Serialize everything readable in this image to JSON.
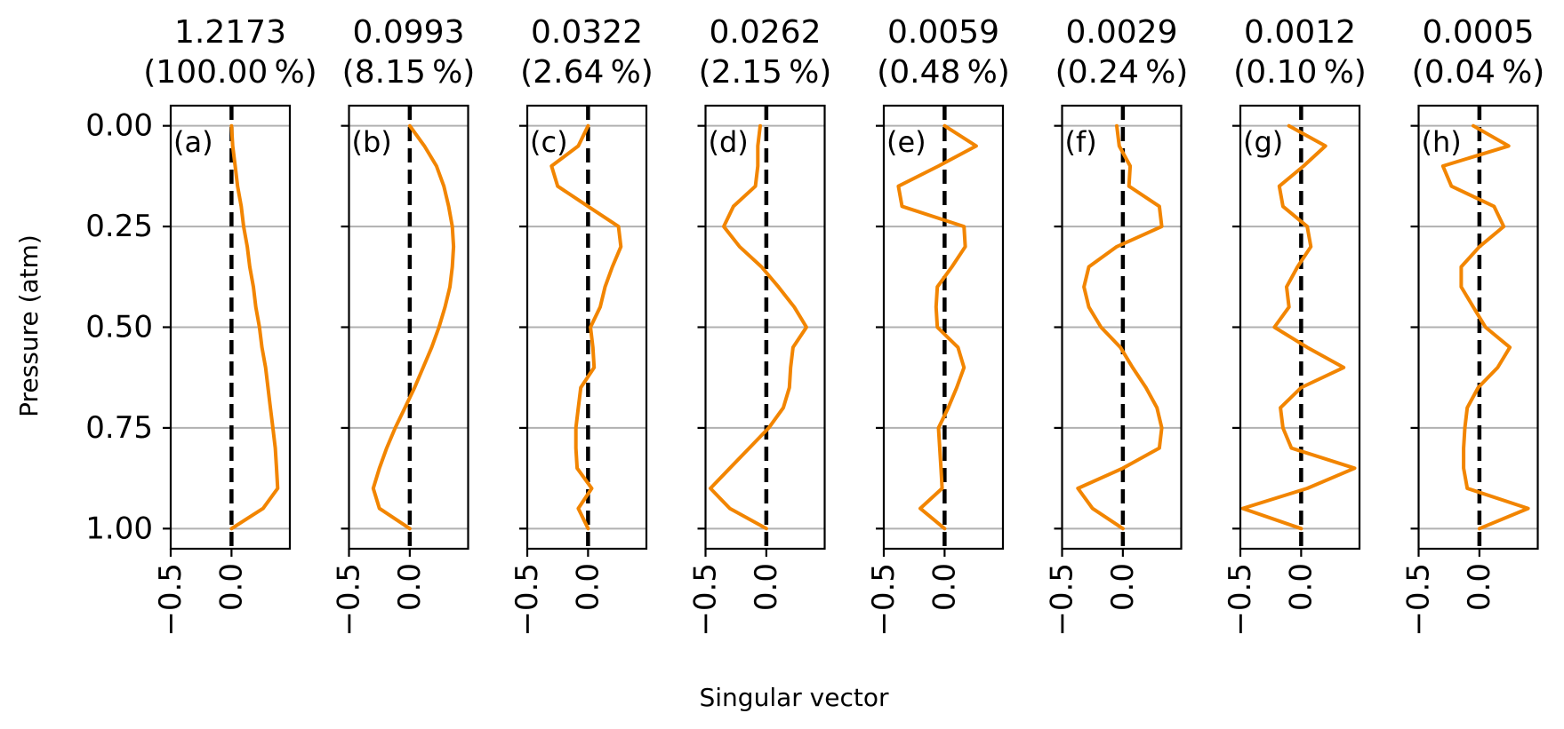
{
  "chart_data": {
    "type": "line",
    "ylabel": "Pressure (atm)",
    "xlabel": "Singular vector",
    "y_ticks": [
      "0.00",
      "0.25",
      "0.50",
      "0.75",
      "1.00"
    ],
    "y_tick_values": [
      0.0,
      0.25,
      0.5,
      0.75,
      1.0
    ],
    "ylim": [
      1.05,
      -0.05
    ],
    "x_ticks": [
      "−0.5",
      "0.0"
    ],
    "x_tick_values": [
      -0.5,
      0.0
    ],
    "xlim": [
      -0.5,
      0.48
    ],
    "grid": "horizontal",
    "line_color": "#f28500",
    "reference_line": {
      "x": 0.0,
      "style": "dashed",
      "color": "#000000"
    },
    "y": [
      0.0,
      0.05,
      0.1,
      0.15,
      0.2,
      0.25,
      0.3,
      0.35,
      0.4,
      0.45,
      0.5,
      0.55,
      0.6,
      0.65,
      0.7,
      0.75,
      0.8,
      0.85,
      0.9,
      0.95,
      1.0
    ],
    "panels": [
      {
        "label": "(a)",
        "value": "1.2173",
        "percent": "(100.00 %)",
        "x": [
          0.0,
          0.01,
          0.03,
          0.05,
          0.08,
          0.1,
          0.13,
          0.15,
          0.18,
          0.2,
          0.23,
          0.25,
          0.28,
          0.3,
          0.32,
          0.34,
          0.36,
          0.37,
          0.38,
          0.26,
          0.0
        ]
      },
      {
        "label": "(b)",
        "value": "0.0993",
        "percent": "(8.15 %)",
        "x": [
          0.0,
          0.12,
          0.22,
          0.28,
          0.32,
          0.35,
          0.36,
          0.35,
          0.33,
          0.29,
          0.24,
          0.18,
          0.11,
          0.04,
          -0.04,
          -0.12,
          -0.19,
          -0.25,
          -0.3,
          -0.25,
          0.0
        ]
      },
      {
        "label": "(c)",
        "value": "0.0322",
        "percent": "(2.64 %)",
        "x": [
          0.0,
          -0.08,
          -0.3,
          -0.25,
          0.0,
          0.25,
          0.27,
          0.2,
          0.14,
          0.1,
          0.02,
          0.04,
          0.05,
          -0.06,
          -0.08,
          -0.1,
          -0.1,
          -0.09,
          0.03,
          -0.08,
          0.0
        ]
      },
      {
        "label": "(d)",
        "value": "0.0262",
        "percent": "(2.15 %)",
        "x": [
          -0.05,
          -0.07,
          -0.07,
          -0.09,
          -0.27,
          -0.35,
          -0.22,
          -0.04,
          0.1,
          0.23,
          0.33,
          0.22,
          0.2,
          0.19,
          0.14,
          0.02,
          -0.14,
          -0.3,
          -0.46,
          -0.3,
          0.0
        ]
      },
      {
        "label": "(e)",
        "value": "0.0059",
        "percent": "(0.48 %)",
        "x": [
          0.0,
          0.26,
          -0.05,
          -0.38,
          -0.35,
          0.16,
          0.17,
          0.06,
          -0.06,
          -0.07,
          -0.06,
          0.11,
          0.16,
          0.1,
          0.03,
          -0.05,
          -0.04,
          -0.03,
          -0.02,
          -0.2,
          0.0
        ]
      },
      {
        "label": "(f)",
        "value": "0.0029",
        "percent": "(0.24 %)",
        "x": [
          -0.05,
          -0.03,
          0.06,
          0.05,
          0.3,
          0.32,
          -0.05,
          -0.28,
          -0.32,
          -0.28,
          -0.18,
          -0.02,
          0.08,
          0.19,
          0.28,
          0.32,
          0.3,
          0.0,
          -0.37,
          -0.25,
          0.0
        ]
      },
      {
        "label": "(g)",
        "value": "0.0012",
        "percent": "(0.10 %)",
        "x": [
          -0.1,
          0.2,
          0.02,
          -0.18,
          -0.15,
          0.05,
          0.08,
          -0.03,
          -0.12,
          -0.1,
          -0.22,
          0.05,
          0.35,
          0.0,
          -0.17,
          -0.15,
          -0.08,
          0.44,
          0.05,
          -0.48,
          0.0
        ]
      },
      {
        "label": "(h)",
        "value": "0.0005",
        "percent": "(0.04 %)",
        "x": [
          -0.05,
          0.24,
          -0.3,
          -0.23,
          0.12,
          0.2,
          0.0,
          -0.15,
          -0.15,
          -0.05,
          0.05,
          0.25,
          0.15,
          -0.01,
          -0.1,
          -0.12,
          -0.13,
          -0.13,
          -0.1,
          0.4,
          0.0
        ]
      }
    ]
  }
}
